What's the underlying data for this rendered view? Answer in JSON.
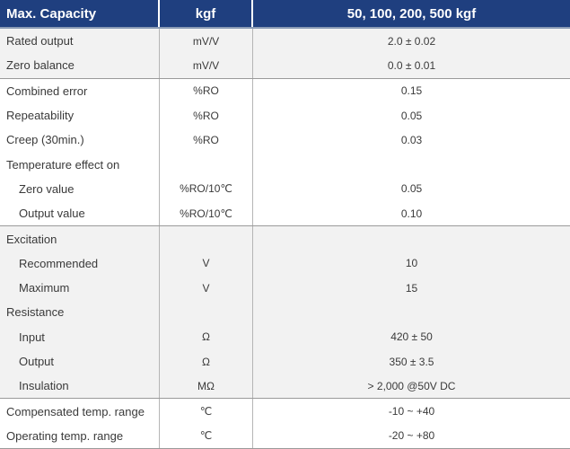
{
  "header": {
    "col1": "Max. Capacity",
    "col2": "kgf",
    "col3": "50, 100, 200, 500 kgf"
  },
  "groups": [
    {
      "rows": [
        {
          "param": "Rated output",
          "unit": "mV/V",
          "value": "2.0 ± 0.02",
          "indent": false
        },
        {
          "param": "Zero balance",
          "unit": "mV/V",
          "value": "0.0 ± 0.01",
          "indent": false
        }
      ]
    },
    {
      "rows": [
        {
          "param": "Combined error",
          "unit": "%RO",
          "value": "0.15",
          "indent": false
        },
        {
          "param": "Repeatability",
          "unit": "%RO",
          "value": "0.05",
          "indent": false
        },
        {
          "param": "Creep (30min.)",
          "unit": "%RO",
          "value": "0.03",
          "indent": false
        },
        {
          "param": "Temperature effect on",
          "unit": "",
          "value": "",
          "indent": false
        },
        {
          "param": "Zero value",
          "unit": "%RO/10℃",
          "value": "0.05",
          "indent": true
        },
        {
          "param": "Output  value",
          "unit": "%RO/10℃",
          "value": "0.10",
          "indent": true
        }
      ]
    },
    {
      "rows": [
        {
          "param": "Excitation",
          "unit": "",
          "value": "",
          "indent": false
        },
        {
          "param": "Recommended",
          "unit": "V",
          "value": "10",
          "indent": true
        },
        {
          "param": "Maximum",
          "unit": "V",
          "value": "15",
          "indent": true
        },
        {
          "param": "Resistance",
          "unit": "",
          "value": "",
          "indent": false
        },
        {
          "param": "Input",
          "unit": "Ω",
          "value": "420 ± 50",
          "indent": true
        },
        {
          "param": "Output",
          "unit": "Ω",
          "value": "350 ± 3.5",
          "indent": true
        },
        {
          "param": "Insulation",
          "unit": "MΩ",
          "value": "> 2,000 @50V DC",
          "indent": true
        }
      ]
    },
    {
      "rows": [
        {
          "param": "Compensated temp. range",
          "unit": "℃",
          "value": "-10 ~ +40",
          "indent": false
        },
        {
          "param": "Operating temp. range",
          "unit": "℃",
          "value": "-20 ~ +80",
          "indent": false
        }
      ]
    }
  ]
}
